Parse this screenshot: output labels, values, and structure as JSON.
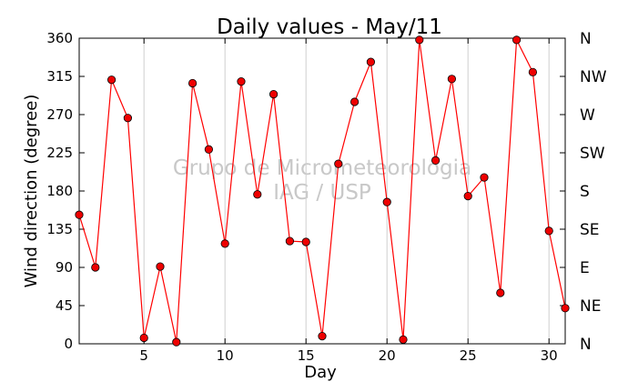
{
  "chart_data": {
    "type": "line",
    "title": "Daily values - May/11",
    "xlabel": "Day",
    "ylabel": "Wind direction (degree)",
    "xlim": [
      1,
      31
    ],
    "ylim": [
      0,
      360
    ],
    "xticks": [
      5,
      10,
      15,
      20,
      25,
      30
    ],
    "yticks": [
      0,
      45,
      90,
      135,
      180,
      225,
      270,
      315,
      360
    ],
    "right_labels": [
      "N",
      "NE",
      "E",
      "SE",
      "S",
      "SW",
      "W",
      "NW",
      "N"
    ],
    "grid": "vertical",
    "watermark": [
      "Grupo de Micrometeorologia",
      "IAG / USP"
    ],
    "line_color": "#ff0000",
    "marker_color": "#ee0000",
    "series": [
      {
        "x": [
          1,
          2,
          3,
          4,
          5,
          6,
          7,
          8,
          9,
          10,
          11,
          12,
          13,
          14,
          15,
          16,
          17,
          18,
          19,
          20,
          21,
          22,
          23,
          24,
          25,
          26,
          27,
          28,
          29,
          30,
          31
        ],
        "values": [
          152,
          90,
          311,
          266,
          7,
          91,
          2,
          307,
          229,
          118,
          309,
          176,
          294,
          121,
          120,
          9,
          212,
          285,
          332,
          167,
          5,
          358,
          216,
          312,
          174,
          196,
          60,
          358,
          320,
          133,
          42
        ]
      }
    ]
  }
}
